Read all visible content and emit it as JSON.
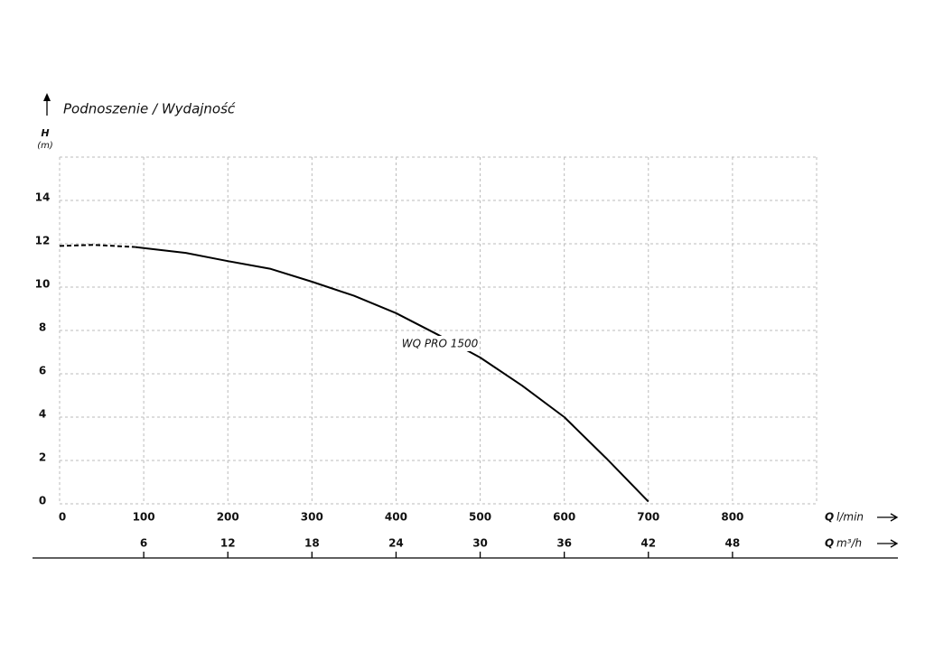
{
  "chart_data": {
    "type": "line",
    "title": "Podnoszenie / Wydajność",
    "y_label": "H",
    "y_unit": "(m)",
    "x_label_symbol": "Q",
    "x_label_unit": "l/min",
    "x2_label_symbol": "Q",
    "x2_label_unit": "m³/h",
    "x": [
      0,
      40,
      90,
      100,
      150,
      200,
      250,
      300,
      350,
      400,
      450,
      500,
      550,
      600,
      650,
      700
    ],
    "series": [
      {
        "color": "#000000",
        "dashed": true,
        "values": [
          11.9,
          11.95,
          11.85,
          null,
          null,
          null,
          null,
          null,
          null,
          null,
          null,
          null,
          null,
          null,
          null,
          null
        ]
      },
      {
        "name": "WQ PRO 1500",
        "color": "#000000",
        "dashed": false,
        "values": [
          null,
          null,
          11.85,
          11.8,
          11.58,
          11.2,
          10.85,
          10.25,
          9.6,
          8.8,
          7.8,
          6.75,
          5.45,
          4.0,
          2.1,
          0.1
        ]
      }
    ],
    "xlim": [
      0,
      900
    ],
    "xticks": [
      0,
      100,
      200,
      300,
      400,
      500,
      600,
      700,
      800
    ],
    "x2lim": [
      0,
      54
    ],
    "x2ticks": [
      6,
      12,
      18,
      24,
      30,
      36,
      42,
      48
    ],
    "ylim": [
      0,
      16
    ],
    "yticks": [
      0,
      2,
      4,
      6,
      8,
      10,
      12,
      14
    ],
    "grid": true
  }
}
